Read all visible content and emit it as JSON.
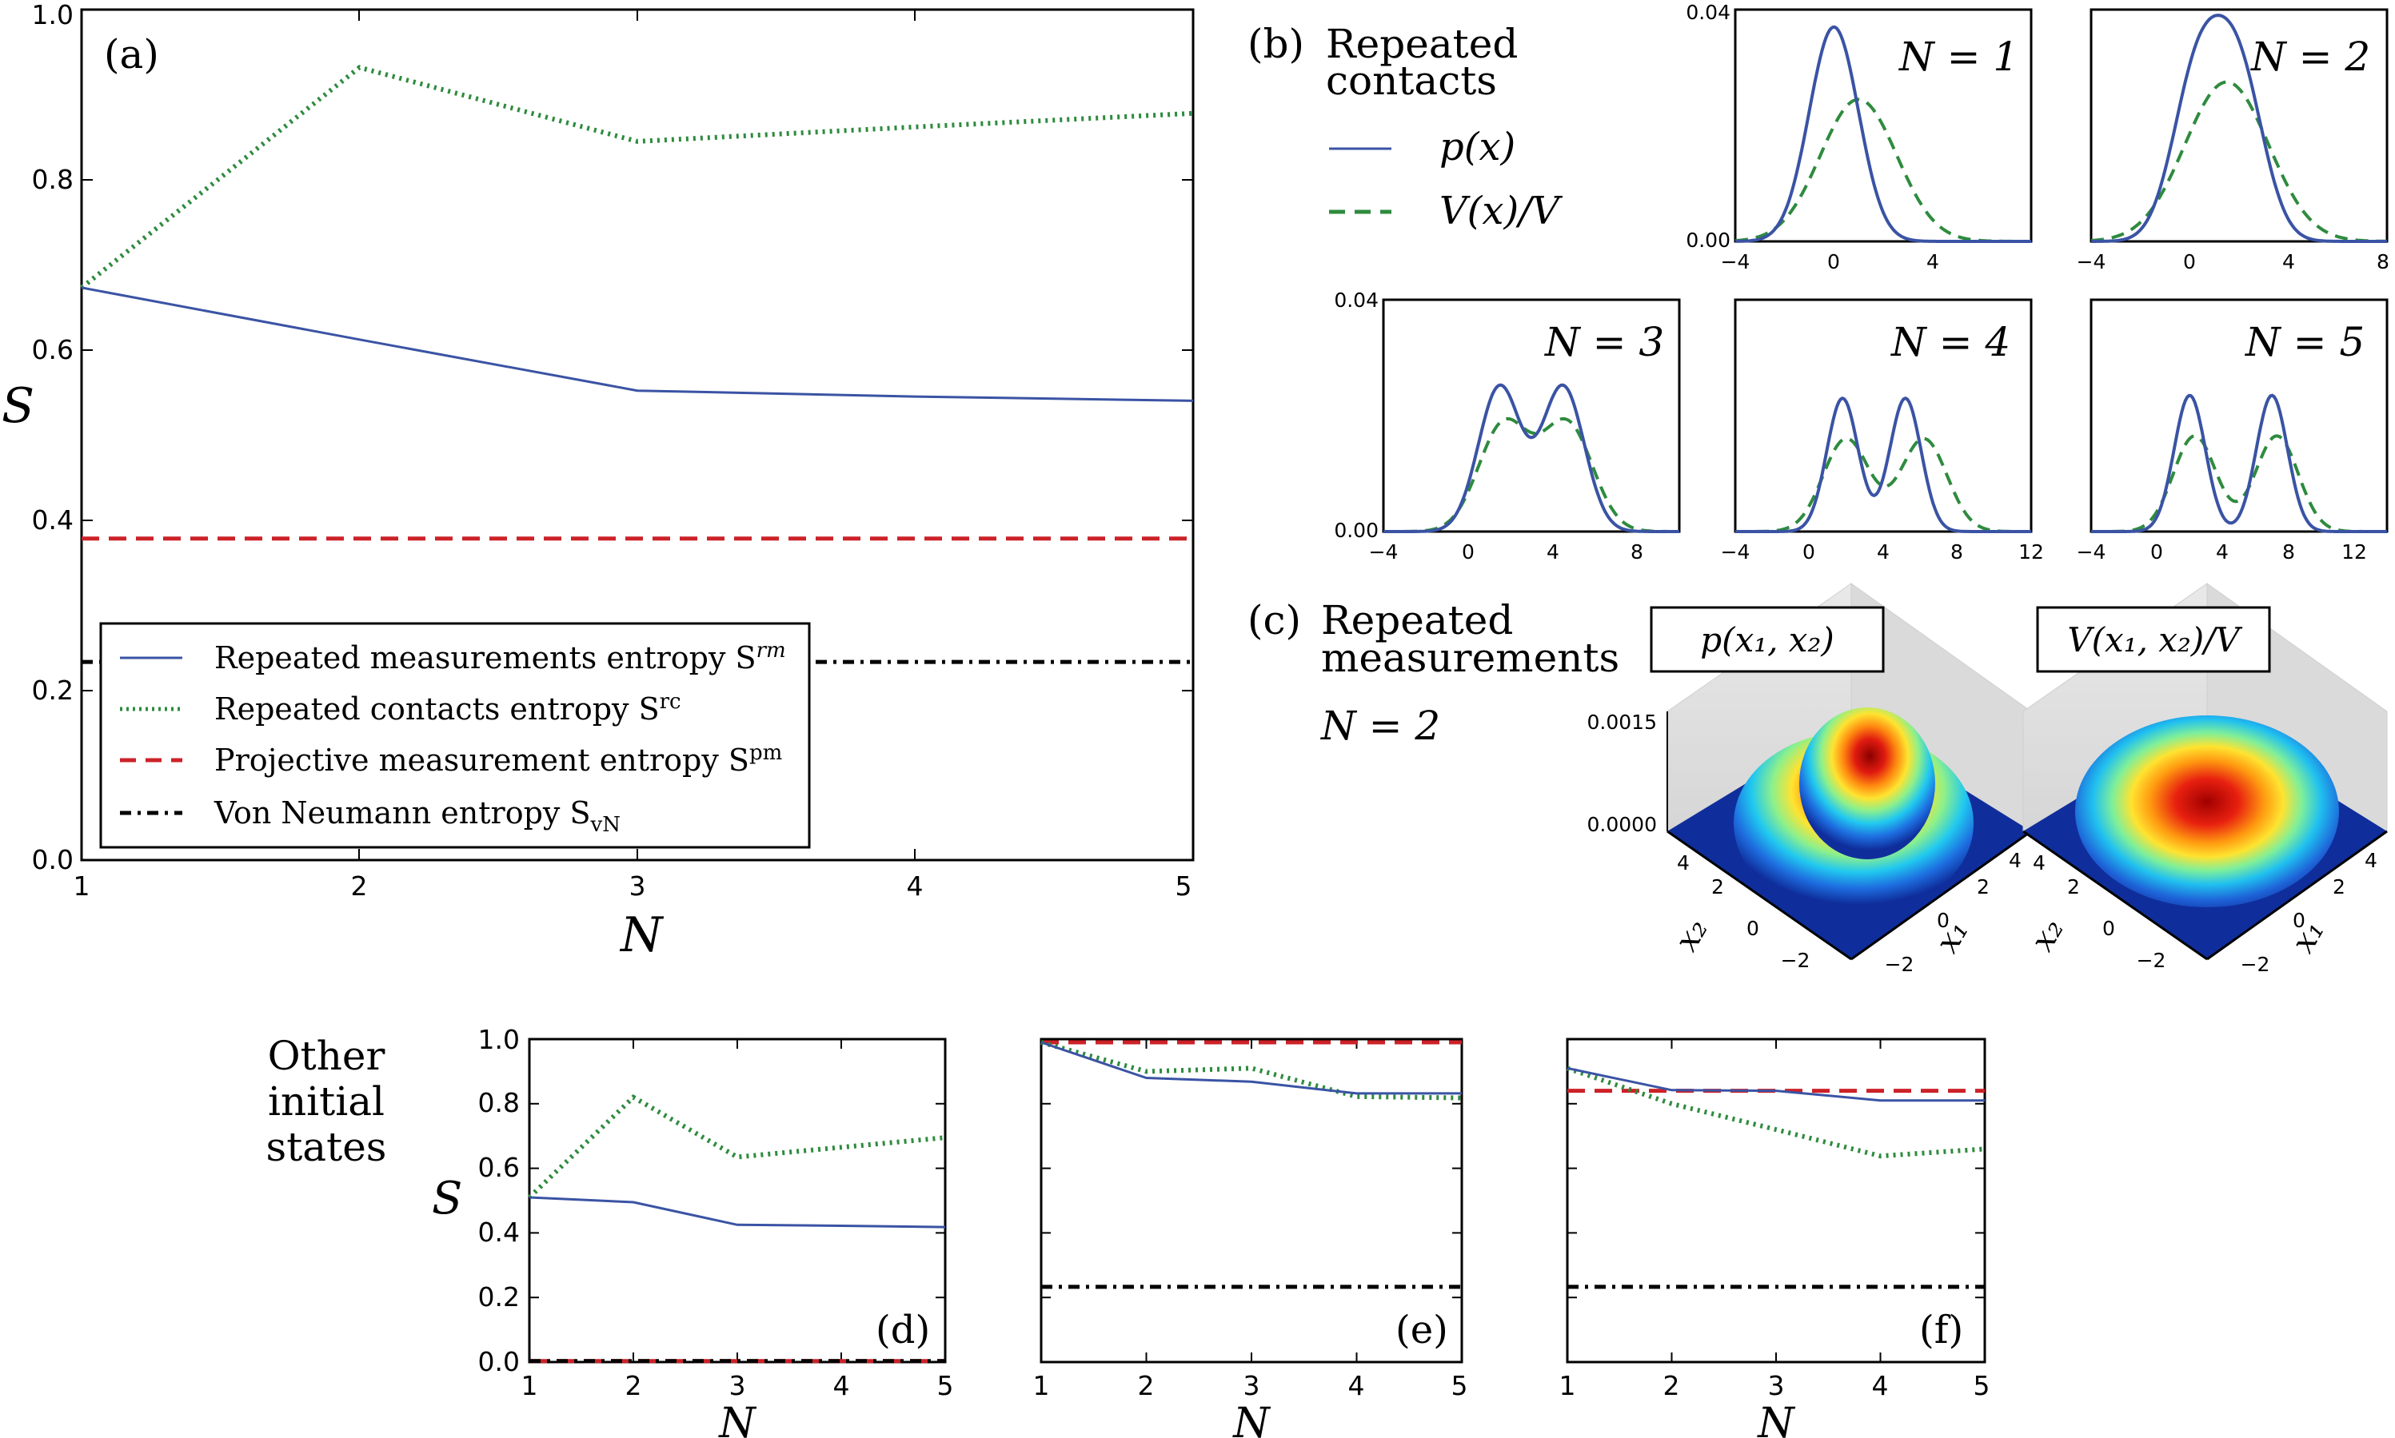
{
  "colors": {
    "rm": "#3a53a4",
    "rc": "#2e8b3e",
    "pm": "#cc2228",
    "vn": "#000000"
  },
  "panel_a": {
    "label": "(a)",
    "ylabel": "S",
    "xlabel": "N",
    "yticks": [
      "0.0",
      "0.2",
      "0.4",
      "0.6",
      "0.8",
      "1.0"
    ],
    "xticks": [
      "1",
      "2",
      "3",
      "4",
      "5"
    ],
    "legend": [
      {
        "text": "Repeated measurements entropy S",
        "sup": "rm",
        "style": "solid",
        "color_key": "rm"
      },
      {
        "text": "Repeated contacts entropy S",
        "sup": "rc",
        "style": "dotted",
        "color_key": "rc"
      },
      {
        "text": "Projective measurement entropy S",
        "sup": "pm",
        "style": "dashed",
        "color_key": "pm"
      },
      {
        "text": "Von Neumann entropy S",
        "sub": "vN",
        "style": "dashdot",
        "color_key": "vn"
      }
    ]
  },
  "panel_b": {
    "label": "(b)",
    "title_line1": "Repeated",
    "title_line2": "contacts",
    "legend_p": "p(x)",
    "legend_v": "V(x)/V",
    "subplot_labels": [
      "N = 1",
      "N = 2",
      "N = 3",
      "N = 4",
      "N = 5"
    ],
    "yticks": [
      "0.00",
      "0.04"
    ],
    "xticks_top": [
      "−4",
      "0",
      "4",
      "8"
    ],
    "xticks_bottom": [
      "−4",
      "0",
      "4",
      "8",
      "12"
    ]
  },
  "panel_c": {
    "label": "(c)",
    "title_line1": "Repeated",
    "title_line2": "measurements",
    "n_label": "N = 2",
    "box_left": "p(x₁, x₂)",
    "box_right": "V(x₁, x₂)/V",
    "zticks": [
      "0.0015",
      "0.0000"
    ],
    "axis_ticks_x2": [
      "4",
      "2",
      "0",
      "−2"
    ],
    "axis_ticks_x1": [
      "4",
      "2",
      "0",
      "−2"
    ],
    "axis_label_x1": "x₁",
    "axis_label_x2": "x₂"
  },
  "other": {
    "title_line1": "Other",
    "title_line2": "initial",
    "title_line3": "states",
    "ylabel": "S",
    "xlabel": "N",
    "yticks": [
      "0.0",
      "0.2",
      "0.4",
      "0.6",
      "0.8",
      "1.0"
    ],
    "xticks": [
      "1",
      "2",
      "3",
      "4",
      "5"
    ],
    "panel_labels": [
      "(d)",
      "(e)",
      "(f)"
    ]
  },
  "chart_data": [
    {
      "id": "a",
      "type": "line",
      "x": [
        1,
        2,
        3,
        4,
        5
      ],
      "xlim": [
        1,
        5
      ],
      "ylim": [
        0.0,
        1.0
      ],
      "xlabel": "N",
      "ylabel": "S",
      "series": [
        {
          "name": "Repeated measurements entropy S^rm",
          "values": [
            0.673,
            0.612,
            0.552,
            0.545,
            0.54
          ]
        },
        {
          "name": "Repeated contacts entropy S^rc",
          "values": [
            0.673,
            0.932,
            0.845,
            0.862,
            0.878
          ]
        },
        {
          "name": "Projective measurement entropy S^pm",
          "values": [
            0.378,
            0.378,
            0.378,
            0.378,
            0.378
          ]
        },
        {
          "name": "Von Neumann entropy S_vN",
          "values": [
            0.233,
            0.233,
            0.233,
            0.233,
            0.233
          ]
        }
      ]
    },
    {
      "id": "d",
      "type": "line",
      "x": [
        1,
        2,
        3,
        4,
        5
      ],
      "xlim": [
        1,
        5
      ],
      "ylim": [
        0.0,
        1.0
      ],
      "series": [
        {
          "values": [
            0.51,
            0.495,
            0.425,
            0.422,
            0.418
          ]
        },
        {
          "values": [
            0.51,
            0.82,
            0.635,
            0.665,
            0.695
          ]
        },
        {
          "values": [
            0.003,
            0.003,
            0.003,
            0.003,
            0.003
          ]
        },
        {
          "values": [
            0.003,
            0.003,
            0.003,
            0.003,
            0.003
          ]
        }
      ]
    },
    {
      "id": "e",
      "type": "line",
      "x": [
        1,
        2,
        3,
        4,
        5
      ],
      "xlim": [
        1,
        5
      ],
      "ylim": [
        0.0,
        1.0
      ],
      "series": [
        {
          "values": [
            0.99,
            0.88,
            0.868,
            0.832,
            0.832
          ]
        },
        {
          "values": [
            0.99,
            0.9,
            0.91,
            0.822,
            0.818
          ]
        },
        {
          "values": [
            0.99,
            0.99,
            0.99,
            0.99,
            0.99
          ]
        },
        {
          "values": [
            0.233,
            0.233,
            0.233,
            0.233,
            0.233
          ]
        }
      ]
    },
    {
      "id": "f",
      "type": "line",
      "x": [
        1,
        2,
        3,
        4,
        5
      ],
      "xlim": [
        1,
        5
      ],
      "ylim": [
        0.0,
        1.0
      ],
      "series": [
        {
          "values": [
            0.91,
            0.842,
            0.84,
            0.81,
            0.81
          ]
        },
        {
          "values": [
            0.91,
            0.8,
            0.72,
            0.638,
            0.66
          ]
        },
        {
          "values": [
            0.84,
            0.84,
            0.84,
            0.84,
            0.84
          ]
        },
        {
          "values": [
            0.233,
            0.233,
            0.233,
            0.233,
            0.233
          ]
        }
      ]
    },
    {
      "id": "b",
      "type": "line",
      "ylim": [
        0.0,
        0.04
      ],
      "subplots": [
        {
          "N": 1,
          "xlim": [
            -4,
            8
          ],
          "p": {
            "mus": [
              0
            ],
            "sig": 1.0,
            "amp": 0.037
          },
          "v": {
            "mus": [
              1.0
            ],
            "sig": 1.55,
            "amp": 0.0245
          }
        },
        {
          "N": 2,
          "xlim": [
            -4,
            8
          ],
          "p": {
            "mus": [
              0.3,
              2.0
            ],
            "sig": 1.0,
            "amp": 0.028
          },
          "v": {
            "mus": [
              1.5
            ],
            "sig": 1.7,
            "amp": 0.0275
          }
        },
        {
          "N": 3,
          "xlim": [
            -4,
            10
          ],
          "p": {
            "mus": [
              1.5,
              4.5
            ],
            "sig": 1.0,
            "amp": 0.025
          },
          "v": {
            "mus": [
              1.7,
              4.7
            ],
            "sig": 1.2,
            "amp": 0.0185
          }
        },
        {
          "N": 4,
          "xlim": [
            -4,
            12
          ],
          "p": {
            "mus": [
              1.8,
              5.2
            ],
            "sig": 0.85,
            "amp": 0.023
          },
          "v": {
            "mus": [
              2.0,
              6.2
            ],
            "sig": 1.25,
            "amp": 0.016
          }
        },
        {
          "N": 5,
          "xlim": [
            -4,
            14
          ],
          "p": {
            "mus": [
              2.0,
              7.0
            ],
            "sig": 0.95,
            "amp": 0.0235
          },
          "v": {
            "mus": [
              2.3,
              7.3
            ],
            "sig": 1.3,
            "amp": 0.0165
          }
        }
      ]
    }
  ]
}
